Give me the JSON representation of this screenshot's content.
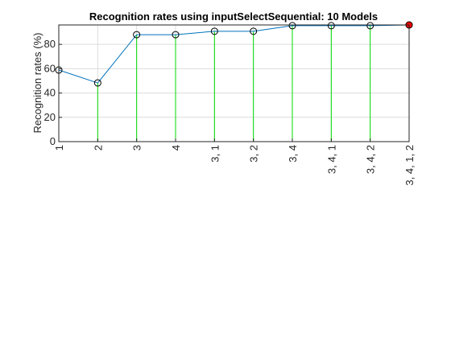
{
  "chart_data": {
    "type": "line",
    "title": "Recognition rates using inputSelectSequential: 10 Models",
    "xlabel": "",
    "ylabel": "Recognition rates (%)",
    "categories": [
      "1",
      "2",
      "3",
      "4",
      "3, 1",
      "3, 2",
      "3, 4",
      "3, 4, 1",
      "3, 4, 2",
      "3, 4, 1, 2"
    ],
    "values": [
      58.9,
      48.3,
      88.0,
      88.0,
      90.8,
      90.8,
      95.4,
      95.4,
      95.4,
      96.0
    ],
    "best_index": 9,
    "ylim": [
      0,
      96.0
    ],
    "yticks": [
      0,
      20,
      40,
      60,
      80
    ],
    "grid": true,
    "colors": {
      "line": "#0072bd",
      "stem": "#00dd00",
      "marker": "#000000",
      "best_marker": "#ff0000",
      "grid": "#dcdcdc",
      "axis": "#262626"
    }
  }
}
